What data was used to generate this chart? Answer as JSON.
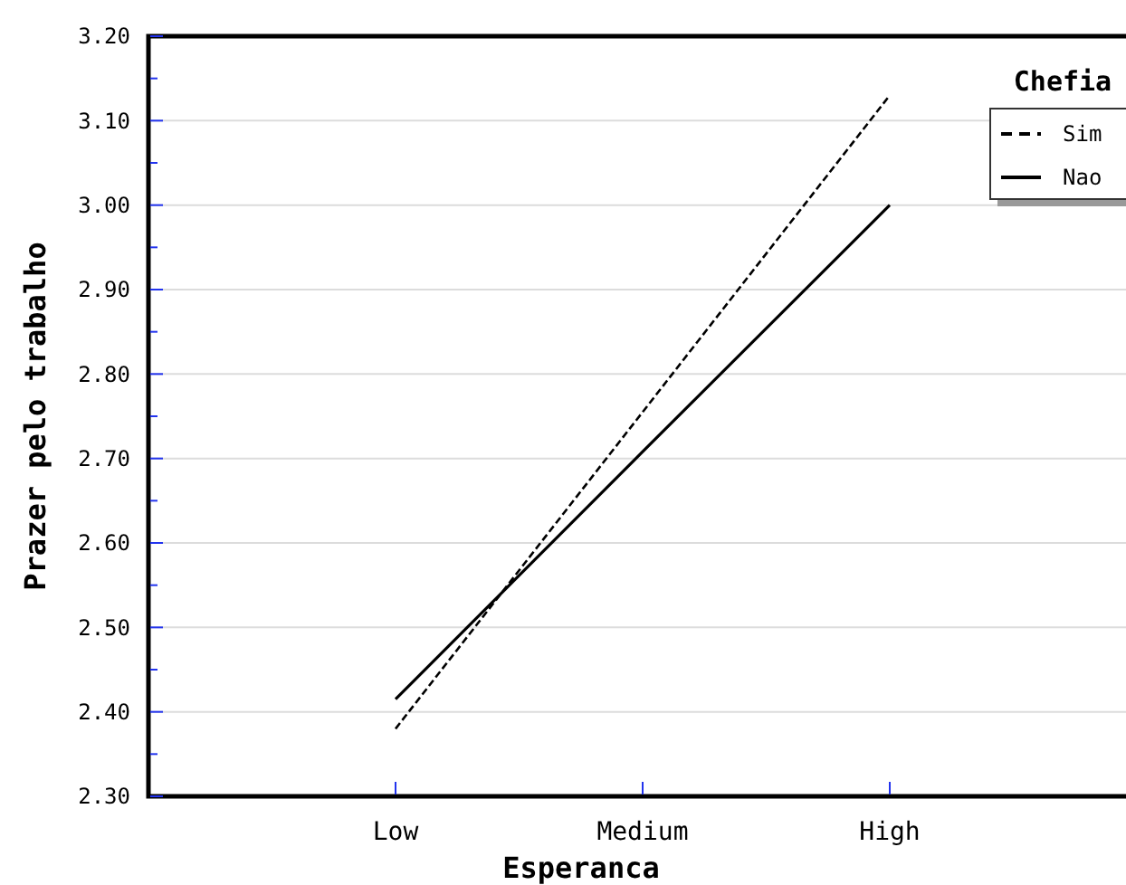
{
  "chart_data": {
    "type": "line",
    "xlabel": "Esperanca",
    "ylabel": "Prazer pelo trabalho",
    "legend_title": "Chefia",
    "categories": [
      "Low",
      "Medium",
      "High"
    ],
    "series": [
      {
        "name": "Sim",
        "color": "#000000",
        "line_style": "dashed",
        "values": [
          2.38,
          2.755,
          3.13
        ]
      },
      {
        "name": "Nao",
        "color": "#000000",
        "line_style": "solid",
        "values": [
          2.415,
          2.708,
          3.0
        ]
      }
    ],
    "ylim": [
      2.3,
      3.2
    ],
    "yticks": [
      {
        "value": 2.3,
        "label": "2.30"
      },
      {
        "value": 2.35,
        "label": null
      },
      {
        "value": 2.4,
        "label": "2.40"
      },
      {
        "value": 2.45,
        "label": null
      },
      {
        "value": 2.5,
        "label": "2.50"
      },
      {
        "value": 2.55,
        "label": null
      },
      {
        "value": 2.6,
        "label": "2.60"
      },
      {
        "value": 2.65,
        "label": null
      },
      {
        "value": 2.7,
        "label": "2.70"
      },
      {
        "value": 2.75,
        "label": null
      },
      {
        "value": 2.8,
        "label": "2.80"
      },
      {
        "value": 2.85,
        "label": null
      },
      {
        "value": 2.9,
        "label": "2.90"
      },
      {
        "value": 2.95,
        "label": null
      },
      {
        "value": 3.0,
        "label": "3.00"
      },
      {
        "value": 3.05,
        "label": null
      },
      {
        "value": 3.1,
        "label": "3.10"
      },
      {
        "value": 3.15,
        "label": null
      },
      {
        "value": 3.2,
        "label": "3.20"
      }
    ],
    "grid": "y",
    "legend": "top right",
    "marker": "none"
  }
}
